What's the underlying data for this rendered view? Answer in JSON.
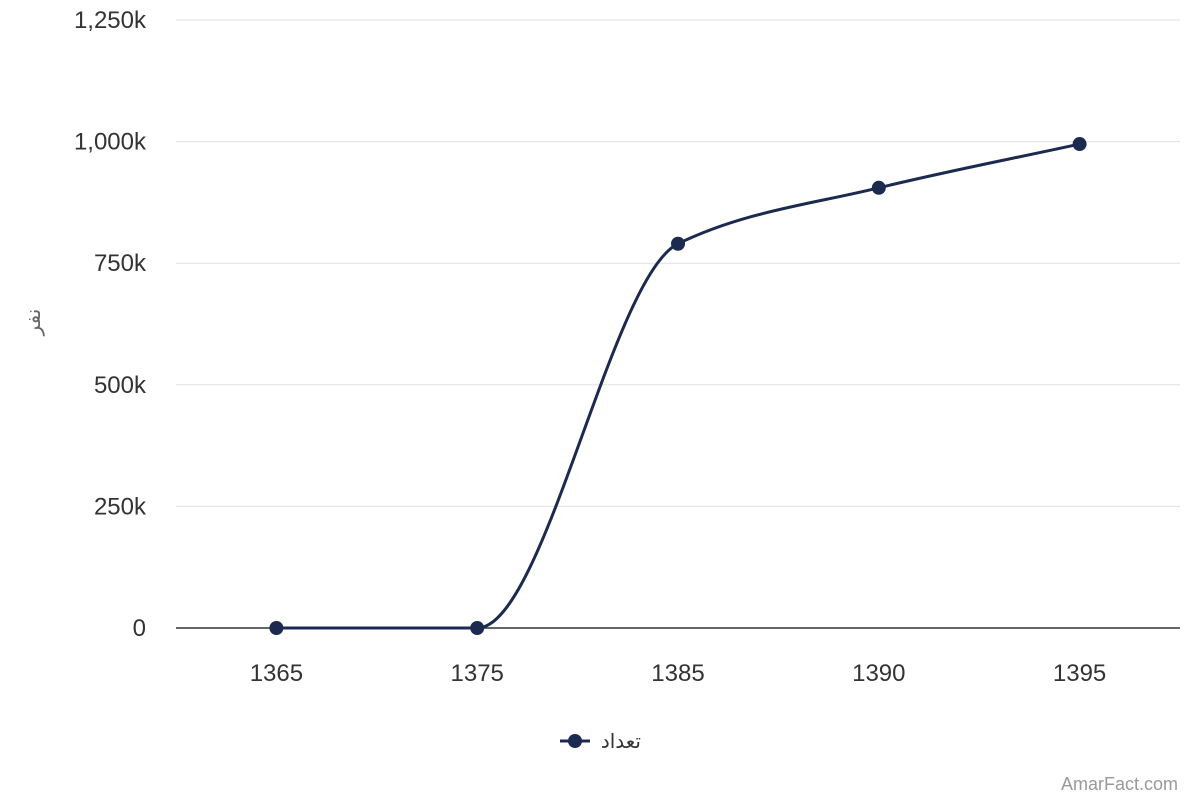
{
  "chart_data": {
    "type": "line",
    "categories": [
      "1365",
      "1375",
      "1385",
      "1390",
      "1395"
    ],
    "series": [
      {
        "name": "تعداد",
        "values": [
          0,
          0,
          790000,
          905000,
          995000
        ],
        "color": "#1b2a4e"
      }
    ],
    "ylabel": "نفر",
    "xlabel": "",
    "ylim": [
      0,
      1250000
    ],
    "yticks": [
      0,
      250000,
      500000,
      750000,
      1000000,
      1250000
    ],
    "ytick_labels": [
      "0",
      "250k",
      "500k",
      "750k",
      "1,000k",
      "1,250k"
    ],
    "grid": true,
    "legend_position": "bottom-center",
    "smooth": true
  },
  "credit": "AmarFact.com",
  "colors": {
    "series": "#1b2a4e",
    "grid": "#e0e0e0",
    "axis": "#333333",
    "credit": "#999999"
  }
}
